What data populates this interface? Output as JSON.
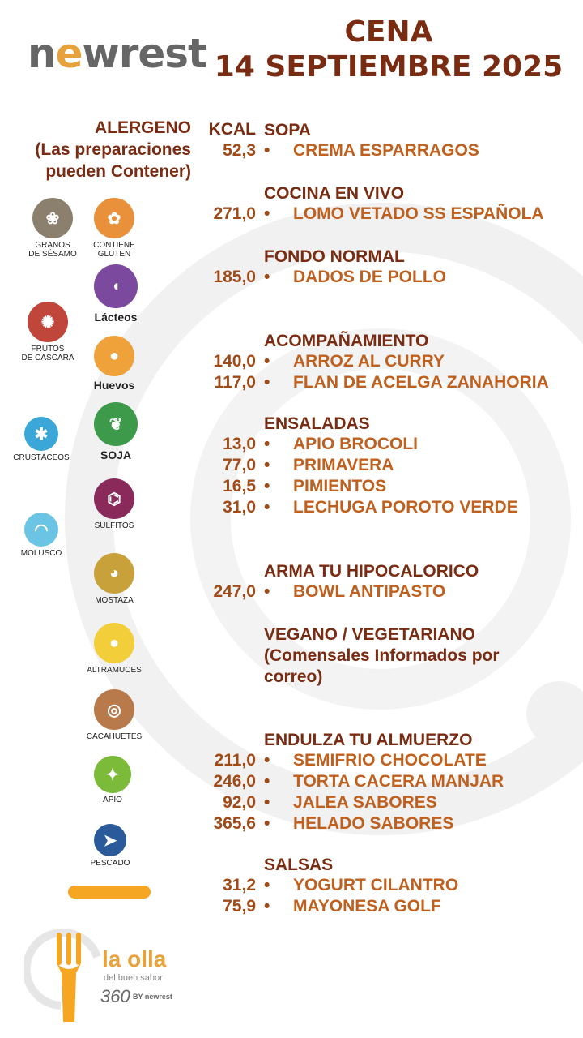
{
  "brand": {
    "logo": "newrest"
  },
  "header": {
    "line1": "CENA",
    "line2": "14 SEPTIEMBRE 2025"
  },
  "allergens": {
    "heading": "ALERGENO",
    "note_line1": "(Las preparaciones",
    "note_line2": "pueden Contener)",
    "items": [
      {
        "label": "GRANOS\nDE SÉSAMO",
        "icon": "sesame-icon",
        "color": "#8b7f6e"
      },
      {
        "label": "CONTIENE\nGLUTEN",
        "icon": "wheat-icon",
        "color": "#e8913a"
      },
      {
        "label": "Lácteos",
        "icon": "milk-jug-icon",
        "color": "#7b4a9e"
      },
      {
        "label": "FRUTOS\nDE CASCARA",
        "icon": "nut-icon",
        "color": "#c0453b"
      },
      {
        "label": "Huevos",
        "icon": "eggs-icon",
        "color": "#f0a23a"
      },
      {
        "label": "CRUSTÁCEOS",
        "icon": "crab-icon",
        "color": "#3aa7d8"
      },
      {
        "label": "SOJA",
        "icon": "soy-icon",
        "color": "#3c9a4a"
      },
      {
        "label": "SULFITOS",
        "icon": "sulfite-icon",
        "color": "#8a2a5a"
      },
      {
        "label": "MOLUSCO",
        "icon": "shell-icon",
        "color": "#6cc4e4"
      },
      {
        "label": "MOSTAZA",
        "icon": "mustard-icon",
        "color": "#c9a13a"
      },
      {
        "label": "ALTRAMUCES",
        "icon": "lupin-icon",
        "color": "#f2cf3a"
      },
      {
        "label": "CACAHUETES",
        "icon": "peanut-icon",
        "color": "#b87a4a"
      },
      {
        "label": "APIO",
        "icon": "celery-icon",
        "color": "#7cbb3a"
      },
      {
        "label": "PESCADO",
        "icon": "fish-icon",
        "color": "#2a5a9a"
      }
    ]
  },
  "menu": {
    "kcal_heading": "KCAL",
    "sections": [
      {
        "title": "SOPA",
        "items": [
          {
            "kcal": "52,3",
            "name": "CREMA ESPARRAGOS"
          }
        ]
      },
      {
        "title": "COCINA EN VIVO",
        "items": [
          {
            "kcal": "271,0",
            "name": "LOMO VETADO SS ESPAÑOLA"
          }
        ]
      },
      {
        "title": "FONDO NORMAL",
        "items": [
          {
            "kcal": "185,0",
            "name": "DADOS DE POLLO"
          }
        ]
      },
      {
        "title": "ACOMPAÑAMIENTO",
        "items": [
          {
            "kcal": "140,0",
            "name": "ARROZ AL CURRY"
          },
          {
            "kcal": "117,0",
            "name": "FLAN DE ACELGA ZANAHORIA"
          }
        ]
      },
      {
        "title": "ENSALADAS",
        "items": [
          {
            "kcal": "13,0",
            "name": "APIO BROCOLI"
          },
          {
            "kcal": "77,0",
            "name": "PRIMAVERA"
          },
          {
            "kcal": "16,5",
            "name": "PIMIENTOS"
          },
          {
            "kcal": "31,0",
            "name": "LECHUGA POROTO VERDE"
          }
        ]
      },
      {
        "title": "ARMA TU HIPOCALORICO",
        "items": [
          {
            "kcal": "247,0",
            "name": "BOWL ANTIPASTO"
          }
        ]
      },
      {
        "title": "VEGANO / VEGETARIANO",
        "note1": "(Comensales Informados por",
        "note2": "correo)",
        "items": []
      },
      {
        "title": "ENDULZA TU ALMUERZO",
        "items": [
          {
            "kcal": "211,0",
            "name": "SEMIFRIO CHOCOLATE"
          },
          {
            "kcal": "246,0",
            "name": "TORTA CACERA MANJAR"
          },
          {
            "kcal": "92,0",
            "name": "JALEA SABORES"
          },
          {
            "kcal": "365,6",
            "name": "HELADO SABORES"
          }
        ]
      },
      {
        "title": "SALSAS",
        "items": [
          {
            "kcal": "31,2",
            "name": "YOGURT  CILANTRO"
          },
          {
            "kcal": "75,9",
            "name": "MAYONESA  GOLF"
          }
        ]
      }
    ],
    "bullet": "•"
  },
  "footer": {
    "brand_line1": "la olla",
    "brand_line2": "del buen sabor",
    "brand_360": "360",
    "brand_by": "BY newrest"
  }
}
